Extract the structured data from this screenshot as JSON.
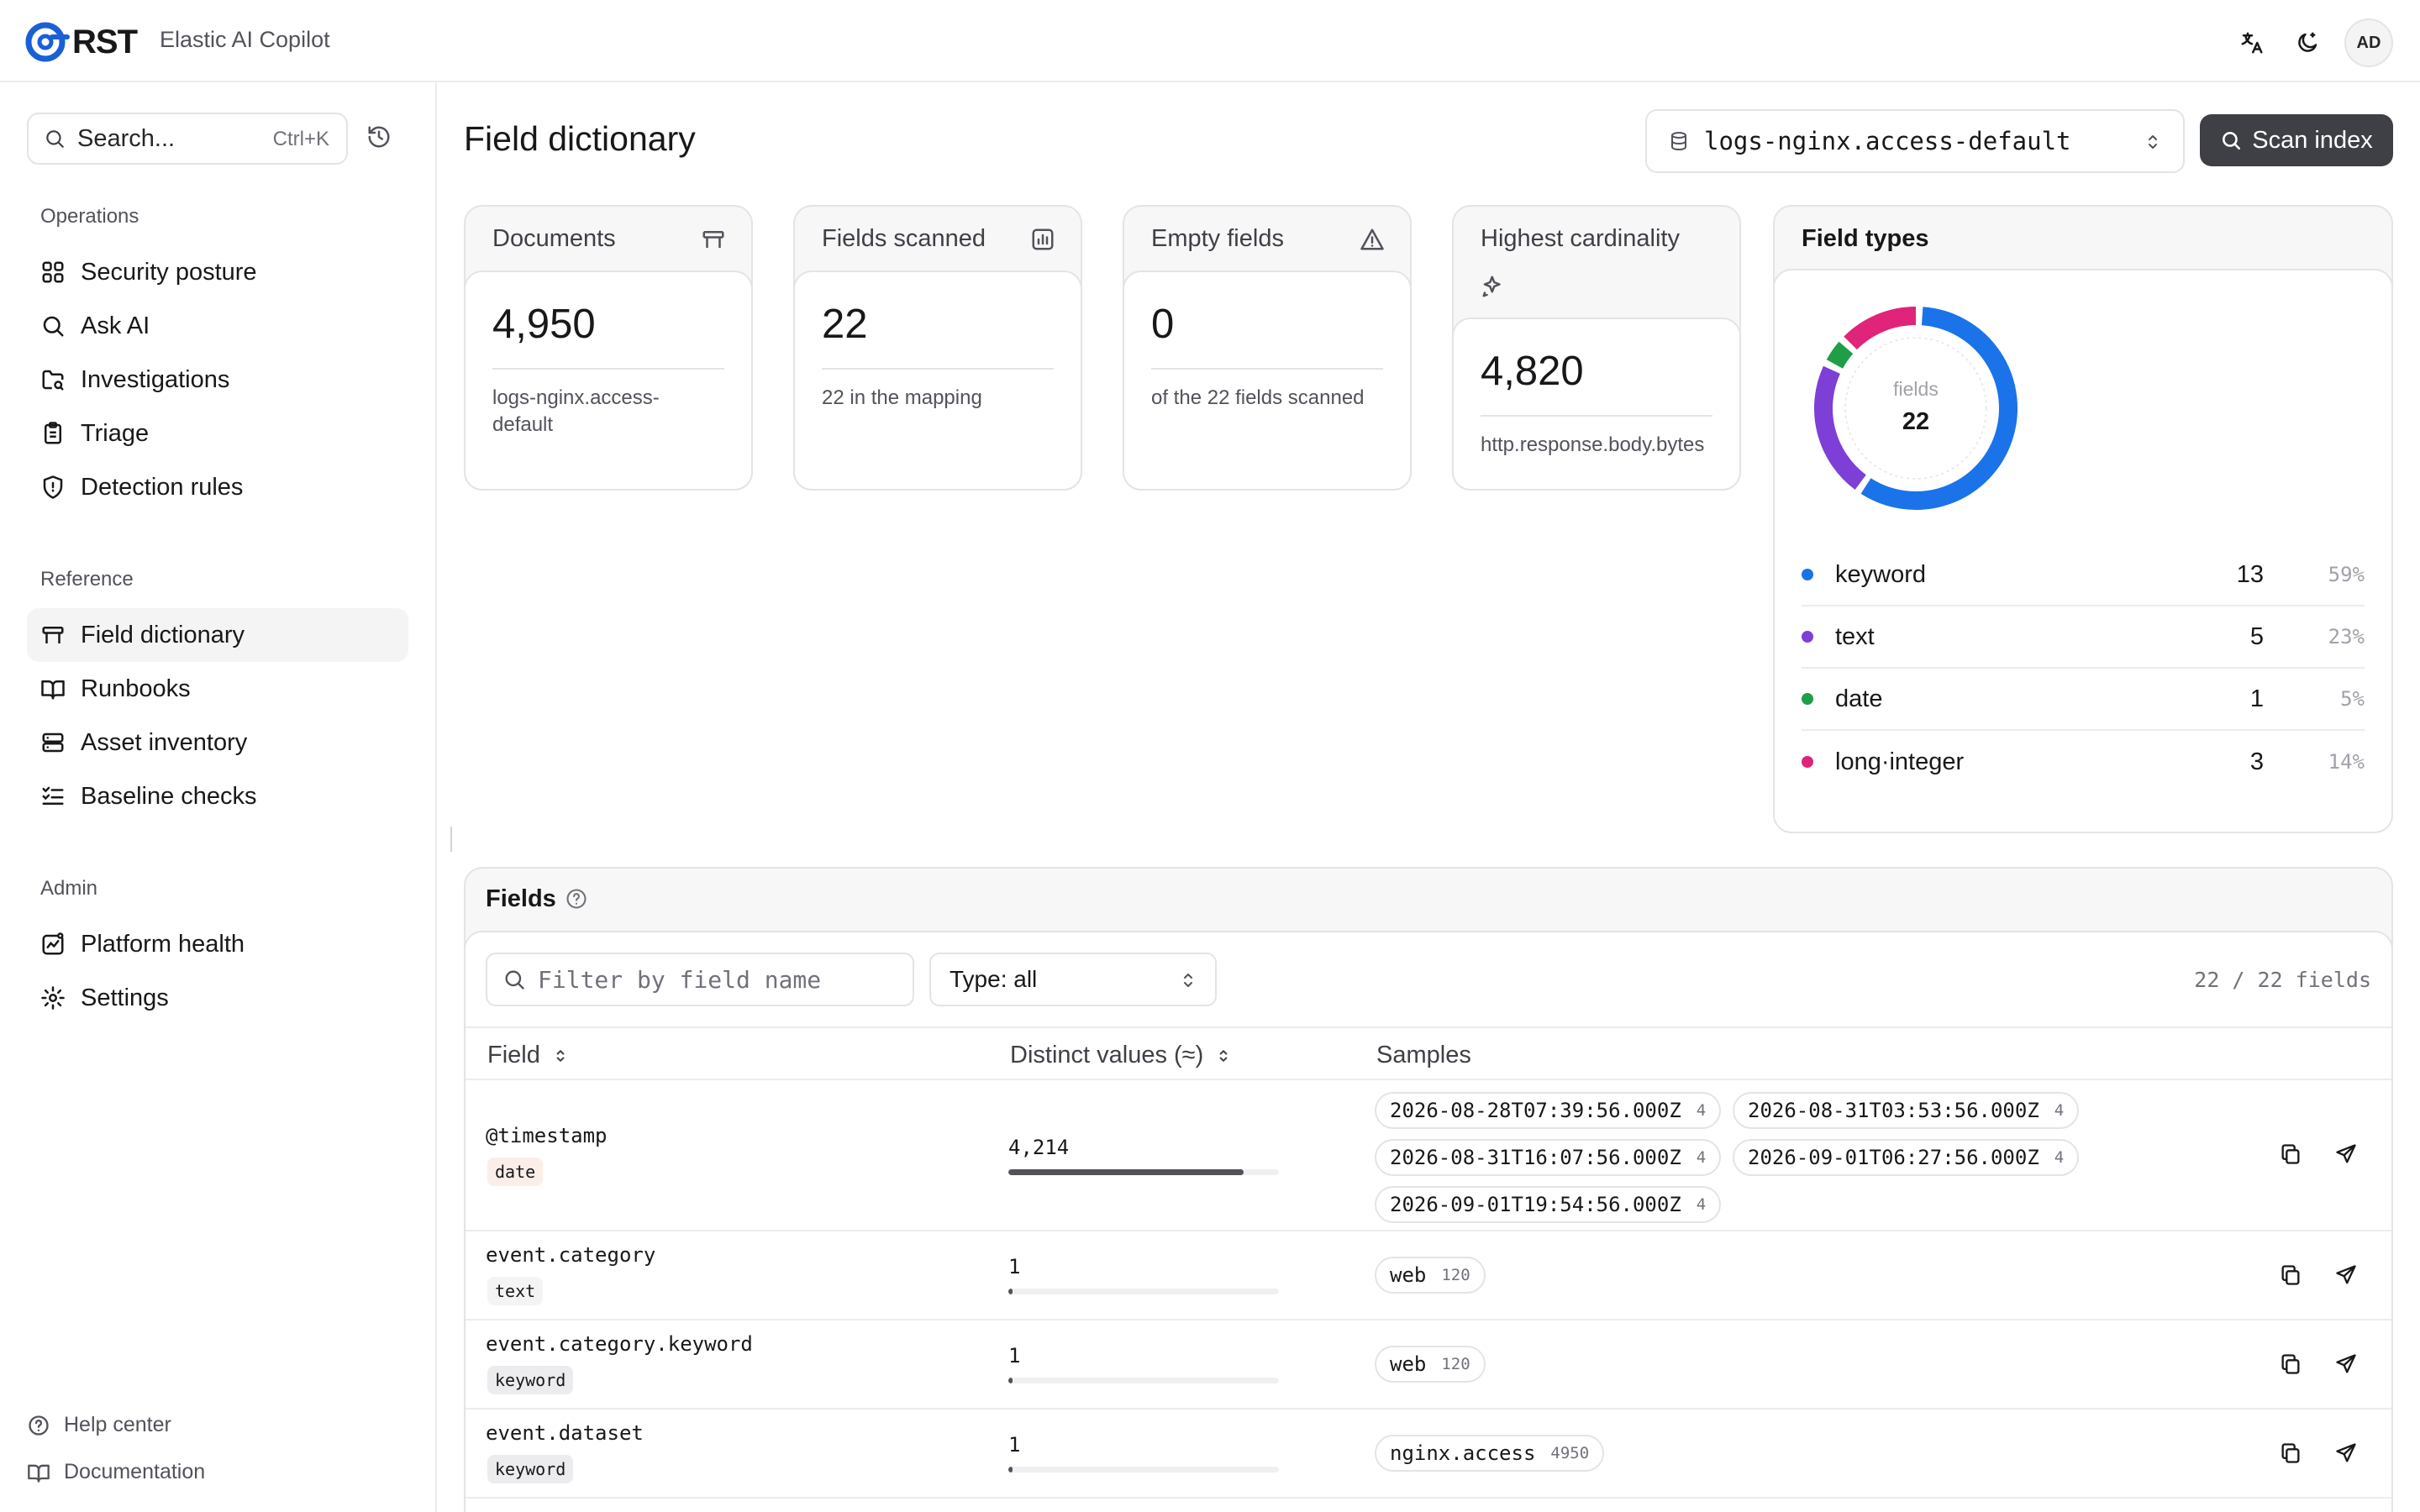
{
  "header": {
    "logo_text": "RST",
    "app_name": "Elastic AI Copilot",
    "avatar": "AD",
    "icons": [
      "translate-icon",
      "theme-icon"
    ]
  },
  "sidebar": {
    "search_label": "Search...",
    "search_shortcut": "Ctrl+K",
    "sections": {
      "operations": "Operations",
      "reference": "Reference",
      "admin": "Admin"
    },
    "operations": [
      {
        "label": "Security posture",
        "icon": "grid-icon"
      },
      {
        "label": "Ask AI",
        "icon": "search-icon"
      },
      {
        "label": "Investigations",
        "icon": "folder-search-icon"
      },
      {
        "label": "Triage",
        "icon": "clipboard-icon"
      },
      {
        "label": "Detection rules",
        "icon": "shield-icon"
      }
    ],
    "reference": [
      {
        "label": "Field dictionary",
        "icon": "table-icon",
        "active": true
      },
      {
        "label": "Runbooks",
        "icon": "book-icon"
      },
      {
        "label": "Asset inventory",
        "icon": "server-icon"
      },
      {
        "label": "Baseline checks",
        "icon": "list-check-icon"
      }
    ],
    "admin": [
      {
        "label": "Platform health",
        "icon": "activity-icon"
      },
      {
        "label": "Settings",
        "icon": "gear-icon"
      }
    ],
    "footer": [
      {
        "label": "Help center",
        "icon": "help-icon"
      },
      {
        "label": "Documentation",
        "icon": "book-icon"
      }
    ]
  },
  "main": {
    "title": "Field dictionary",
    "index_select": "logs-nginx.access-default",
    "scan_button": "Scan index",
    "stats": [
      {
        "label": "Documents",
        "value": "4,950",
        "sub": "logs-nginx.access-default",
        "icon": "table-icon"
      },
      {
        "label": "Fields scanned",
        "value": "22",
        "sub": "22 in the mapping",
        "icon": "chart-icon"
      },
      {
        "label": "Empty fields",
        "value": "0",
        "sub": "of the 22 fields scanned",
        "icon": "warning-icon"
      },
      {
        "label": "Highest cardinality",
        "value": "4,820",
        "sub": "http.response.body.bytes",
        "icon": "sparkles-icon"
      }
    ],
    "field_types": {
      "title": "Field types",
      "center_label": "fields",
      "center_value": "22",
      "colors": {
        "keyword": "#1a73e8",
        "text": "#7e3fd6",
        "date": "#1f9e48",
        "long-integer": "#e0247a"
      },
      "rows": [
        {
          "name": "keyword",
          "count": "13",
          "pct": "59%",
          "value": 13,
          "color": "#1a73e8"
        },
        {
          "name": "text",
          "count": "5",
          "pct": "23%",
          "value": 5,
          "color": "#7e3fd6"
        },
        {
          "name": "date",
          "count": "1",
          "pct": "5%",
          "value": 1,
          "color": "#1f9e48"
        },
        {
          "name": "long·integer",
          "count": "3",
          "pct": "14%",
          "value": 3,
          "color": "#e0247a"
        }
      ]
    },
    "fields": {
      "title": "Fields",
      "filter_placeholder": "Filter by field name",
      "type_select": "Type: all",
      "count": "22 / 22 fields",
      "columns": {
        "field": "Field",
        "distinct": "Distinct values (≈)",
        "samples": "Samples"
      },
      "rows": [
        {
          "name": "@timestamp",
          "type": "date",
          "distinct": "4,214",
          "fraction": 0.87,
          "samples": [
            {
              "value": "2026-08-28T07:39:56.000Z",
              "count": "4"
            },
            {
              "value": "2026-08-31T03:53:56.000Z",
              "count": "4"
            },
            {
              "value": "2026-08-31T16:07:56.000Z",
              "count": "4"
            },
            {
              "value": "2026-09-01T06:27:56.000Z",
              "count": "4"
            },
            {
              "value": "2026-09-01T19:54:56.000Z",
              "count": "4"
            }
          ]
        },
        {
          "name": "event.category",
          "type": "text",
          "distinct": "1",
          "fraction": 0.0,
          "samples": [
            {
              "value": "web",
              "count": "120"
            }
          ]
        },
        {
          "name": "event.category.keyword",
          "type": "keyword",
          "distinct": "1",
          "fraction": 0.0,
          "samples": [
            {
              "value": "web",
              "count": "120"
            }
          ]
        },
        {
          "name": "event.dataset",
          "type": "keyword",
          "distinct": "1",
          "fraction": 0.0,
          "samples": [
            {
              "value": "nginx.access",
              "count": "4950"
            }
          ]
        }
      ]
    }
  }
}
